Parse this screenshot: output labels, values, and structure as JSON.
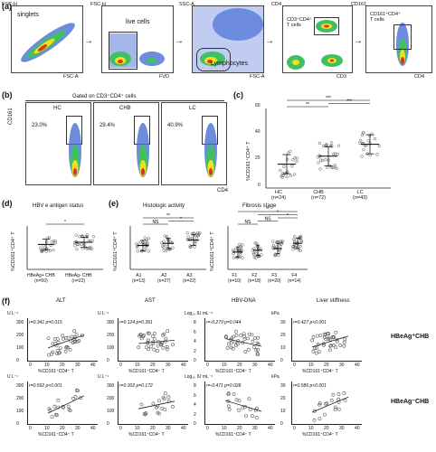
{
  "panels": {
    "a": "(a)",
    "b": "(b)",
    "c": "(c)",
    "d": "(d)",
    "e": "(e)",
    "f": "(f)"
  },
  "panel_a": {
    "plots": [
      {
        "ylabel": "FSC-H",
        "xlabel": "FSC-A",
        "gate_label": "singlets"
      },
      {
        "ylabel": "FSC-H",
        "xlabel": "FVD",
        "gate_label": "live cells"
      },
      {
        "ylabel": "SSC-A",
        "xlabel": "FSC-A",
        "gate_label": "Lymphocytes"
      },
      {
        "ylabel": "CD4",
        "xlabel": "CD3",
        "gate_label": "CD3⁺CD4⁺\nT cells"
      },
      {
        "ylabel": "CD161",
        "xlabel": "CD4",
        "gate_label": "CD161⁺CD4⁺\nT cells"
      }
    ]
  },
  "panel_b": {
    "gate_title": "Gated on CD3⁺CD4⁺ cells",
    "ylabel": "CD161",
    "xlabel": "CD4",
    "plots": [
      {
        "group": "HC",
        "percent": "23.0%"
      },
      {
        "group": "CHB",
        "percent": "29.4%"
      },
      {
        "group": "LC",
        "percent": "40.9%"
      }
    ]
  },
  "chart_data": [
    {
      "id": "c",
      "type": "scatter",
      "ylabel": "%CD161⁺CD4⁺ T",
      "ylim": [
        0,
        60
      ],
      "yticks": [
        "0",
        "20",
        "40",
        "60"
      ],
      "categories": [
        "HC\n(n=24)",
        "CHB\n(n=72)",
        "LC\n(n=43)"
      ],
      "means": [
        18,
        24,
        33
      ],
      "significance": [
        {
          "from": 0,
          "to": 1,
          "label": "**"
        },
        {
          "from": 1,
          "to": 2,
          "label": "***"
        },
        {
          "from": 0,
          "to": 2,
          "label": "***"
        }
      ]
    },
    {
      "id": "d",
      "type": "scatter",
      "title": "HBV e antigen status",
      "ylabel": "%CD161⁺CD4⁺ T",
      "ylim": [
        0,
        40
      ],
      "yticks": [
        "0",
        "5",
        "10",
        "15",
        "20",
        "25",
        "30",
        "35",
        "40"
      ],
      "categories": [
        "HBeAg+ CHB\n(n=50)",
        "HBeAg- CHB\n(n=22)"
      ],
      "means": [
        23,
        25
      ],
      "significance": [
        {
          "from": 0,
          "to": 1,
          "label": "*"
        }
      ]
    },
    {
      "id": "e1",
      "type": "scatter",
      "title": "Histologic activity",
      "ylabel": "%CD161⁺CD4⁺ T",
      "ylim": [
        0,
        40
      ],
      "yticks": [
        "0",
        "5",
        "10",
        "15",
        "20",
        "25",
        "30",
        "35",
        "40"
      ],
      "categories": [
        "A1\n(n=13)",
        "A2\n(n=27)",
        "A3\n(n=22)"
      ],
      "means": [
        22,
        24,
        27
      ],
      "significance": [
        {
          "from": 0,
          "to": 1,
          "label": "NS"
        },
        {
          "from": 1,
          "to": 2,
          "label": "*"
        },
        {
          "from": 0,
          "to": 2,
          "label": "**"
        }
      ]
    },
    {
      "id": "e2",
      "type": "scatter",
      "title": "Fibrosis stage",
      "ylabel": "%CD161⁺CD4⁺ T",
      "ylim": [
        0,
        50
      ],
      "yticks": [
        "0",
        "10",
        "20",
        "30",
        "40",
        "50"
      ],
      "categories": [
        "F1\n(n=10)",
        "F2\n(n=18)",
        "F3\n(n=20)",
        "F4\n(n=14)"
      ],
      "means": [
        20,
        22,
        24,
        30
      ],
      "significance": [
        {
          "from": 0,
          "to": 1,
          "label": "NS"
        },
        {
          "from": 1,
          "to": 2,
          "label": "NS"
        },
        {
          "from": 2,
          "to": 3,
          "label": "*"
        },
        {
          "from": 1,
          "to": 3,
          "label": "*"
        },
        {
          "from": 0,
          "to": 3,
          "label": "**"
        }
      ]
    }
  ],
  "panel_f": {
    "columns": [
      {
        "title": "ALT",
        "unit": "U L⁻¹"
      },
      {
        "title": "AST",
        "unit": "U L⁻¹"
      },
      {
        "title": "HBV-DNA",
        "unit": "Log₁₀ IU mL⁻¹"
      },
      {
        "title": "Liver stiffness",
        "unit": "kPa"
      }
    ],
    "rows": [
      {
        "label": "HBeAg⁺CHB",
        "stats": [
          "r=0.341 p=0.015",
          "r=0.124 p=0.391",
          "r=-0.279 p=0.044",
          "r=0.427 p<0.001"
        ],
        "yticks": [
          [
            "0",
            "100",
            "200",
            "300"
          ],
          [
            "0",
            "100",
            "200",
            "300"
          ],
          [
            "0",
            "2",
            "4",
            "6",
            "8"
          ],
          [
            "0",
            "10",
            "20",
            "30"
          ]
        ]
      },
      {
        "label": "HBeAg⁻CHB",
        "stats": [
          "r=0.592 p<0.001",
          "r=0.302 p=0.172",
          "r=-0.471 p=0.028",
          "r=0.586 p<0.001"
        ],
        "yticks": [
          [
            "0",
            "100",
            "200",
            "300"
          ],
          [
            "0",
            "100",
            "200",
            "300"
          ],
          [
            "0",
            "2",
            "4",
            "6",
            "8"
          ],
          [
            "0",
            "10",
            "20",
            "30"
          ]
        ]
      }
    ],
    "xticks": [
      "0",
      "10",
      "20",
      "30",
      "40"
    ],
    "xlabel": "%CD161⁺CD4⁺ T"
  }
}
